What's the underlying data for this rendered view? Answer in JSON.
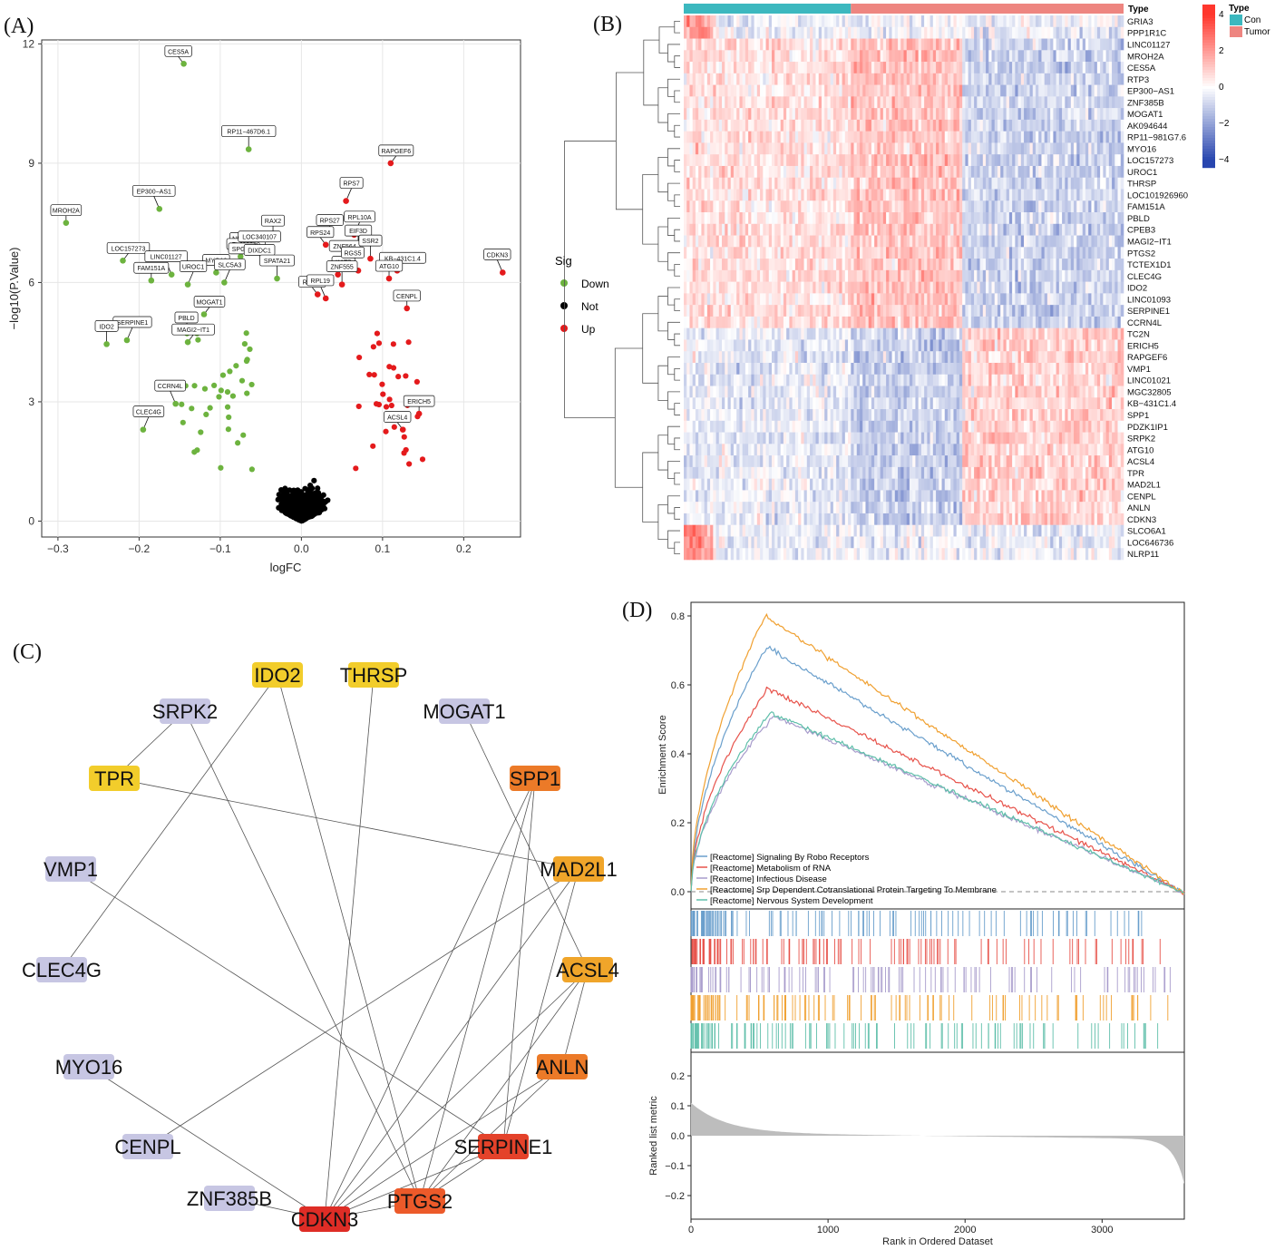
{
  "panels": {
    "a": "(A)",
    "b": "(B)",
    "c": "(C)",
    "d": "(D)"
  },
  "chart_data": [
    {
      "type": "scatter",
      "panel": "A",
      "xlabel": "logFC",
      "ylabel": "−log10(P.Value)",
      "xlim": [
        -0.32,
        0.27
      ],
      "ylim": [
        -0.4,
        12.1
      ],
      "xticks": [
        -0.3,
        -0.2,
        -0.1,
        0.0,
        0.1,
        0.2
      ],
      "xtick_labels": [
        "−0.3",
        "−0.2",
        "−0.1",
        "0.0",
        "0.1",
        "0.2"
      ],
      "yticks": [
        0,
        3,
        6,
        9,
        12
      ],
      "yticks_labels": [
        "0",
        "3",
        "6",
        "9",
        "12"
      ],
      "grid": true,
      "legend": {
        "title": "Sig",
        "position": "right",
        "entries": [
          {
            "name": "Down",
            "color": "#6db33f"
          },
          {
            "name": "Not",
            "color": "#000000"
          },
          {
            "name": "Up",
            "color": "#e41a1c"
          }
        ]
      },
      "labeled_points": [
        {
          "label": "CES5A",
          "x": -0.145,
          "y": 11.5,
          "sig": "Down"
        },
        {
          "label": "RP11−467D6.1",
          "x": -0.065,
          "y": 9.35,
          "sig": "Down"
        },
        {
          "label": "RAPGEF6",
          "x": 0.11,
          "y": 9.0,
          "sig": "Up"
        },
        {
          "label": "EP300−AS1",
          "x": -0.175,
          "y": 7.85,
          "sig": "Down"
        },
        {
          "label": "MROH2A",
          "x": -0.29,
          "y": 7.5,
          "sig": "Down"
        },
        {
          "label": "RPS7",
          "x": 0.055,
          "y": 8.05,
          "sig": "Up"
        },
        {
          "label": "NEGR1",
          "x": -0.065,
          "y": 6.8,
          "sig": "Down"
        },
        {
          "label": "RAX2",
          "x": -0.035,
          "y": 7.1,
          "sig": "Down"
        },
        {
          "label": "FLJ39080",
          "x": -0.075,
          "y": 6.65,
          "sig": "Down"
        },
        {
          "label": "LOC340107",
          "x": -0.045,
          "y": 6.7,
          "sig": "Down"
        },
        {
          "label": "RPS27",
          "x": 0.035,
          "y": 7.25,
          "sig": "Up"
        },
        {
          "label": "RPL10A",
          "x": 0.065,
          "y": 7.2,
          "sig": "Up"
        },
        {
          "label": "RPS24",
          "x": 0.03,
          "y": 6.95,
          "sig": "Up"
        },
        {
          "label": "EIF3D",
          "x": 0.07,
          "y": 6.85,
          "sig": "Up"
        },
        {
          "label": "LOC157273",
          "x": -0.22,
          "y": 6.55,
          "sig": "Down"
        },
        {
          "label": "LINC01127",
          "x": -0.16,
          "y": 6.2,
          "sig": "Down"
        },
        {
          "label": "MYO16",
          "x": -0.105,
          "y": 6.25,
          "sig": "Down"
        },
        {
          "label": "SPG11",
          "x": -0.08,
          "y": 6.4,
          "sig": "Down"
        },
        {
          "label": "ZNF564",
          "x": 0.06,
          "y": 6.6,
          "sig": "Up"
        },
        {
          "label": "SSR2",
          "x": 0.085,
          "y": 6.6,
          "sig": "Up"
        },
        {
          "label": "KB−431C1.4",
          "x": 0.118,
          "y": 6.3,
          "sig": "Up"
        },
        {
          "label": "CDKN3",
          "x": 0.248,
          "y": 6.25,
          "sig": "Up"
        },
        {
          "label": "FAM151A",
          "x": -0.185,
          "y": 6.05,
          "sig": "Down"
        },
        {
          "label": "SLC5A3",
          "x": -0.095,
          "y": 6.0,
          "sig": "Down"
        },
        {
          "label": "DIXDC1",
          "x": -0.045,
          "y": 6.5,
          "sig": "Down"
        },
        {
          "label": "SPATA21",
          "x": -0.03,
          "y": 6.1,
          "sig": "Down"
        },
        {
          "label": "KAT7",
          "x": 0.045,
          "y": 6.2,
          "sig": "Up"
        },
        {
          "label": "RGS5",
          "x": 0.07,
          "y": 6.3,
          "sig": "Up"
        },
        {
          "label": "ATG10",
          "x": 0.108,
          "y": 6.1,
          "sig": "Up"
        },
        {
          "label": "UROC1",
          "x": -0.14,
          "y": 5.95,
          "sig": "Down"
        },
        {
          "label": "RPL30",
          "x": 0.02,
          "y": 5.7,
          "sig": "Up"
        },
        {
          "label": "ZNF555",
          "x": 0.05,
          "y": 5.95,
          "sig": "Up"
        },
        {
          "label": "MOGAT1",
          "x": -0.12,
          "y": 5.2,
          "sig": "Down"
        },
        {
          "label": "RPL19",
          "x": 0.03,
          "y": 5.6,
          "sig": "Up"
        },
        {
          "label": "CENPL",
          "x": 0.13,
          "y": 5.35,
          "sig": "Up"
        },
        {
          "label": "SERPINE1",
          "x": -0.215,
          "y": 4.55,
          "sig": "Down"
        },
        {
          "label": "PBLD",
          "x": -0.135,
          "y": 4.8,
          "sig": "Down"
        },
        {
          "label": "IDO2",
          "x": -0.24,
          "y": 4.45,
          "sig": "Down"
        },
        {
          "label": "MAGI2−IT1",
          "x": -0.14,
          "y": 4.5,
          "sig": "Down"
        },
        {
          "label": "CCRN4L",
          "x": -0.155,
          "y": 2.95,
          "sig": "Down"
        },
        {
          "label": "ERICH5",
          "x": 0.145,
          "y": 2.7,
          "sig": "Up"
        },
        {
          "label": "CLEC4G",
          "x": -0.195,
          "y": 2.3,
          "sig": "Down"
        },
        {
          "label": "ACSL4",
          "x": 0.125,
          "y": 2.3,
          "sig": "Up"
        }
      ]
    },
    {
      "type": "heatmap",
      "panel": "B",
      "annotation_title": "Type",
      "groups": [
        {
          "name": "Con",
          "color": "#3cb8bf"
        },
        {
          "name": "Tumor",
          "color": "#ee8580"
        }
      ],
      "colorbar_ticks": [
        "4",
        "2",
        "0",
        "−2",
        "−4"
      ],
      "colorbar_range": [
        -4.5,
        4.5
      ],
      "rows": [
        "GRIA3",
        "PPP1R1C",
        "LINC01127",
        "MROH2A",
        "CES5A",
        "RTP3",
        "EP300−AS1",
        "ZNF385B",
        "MOGAT1",
        "AK094644",
        "RP11−981G7.6",
        "MYO16",
        "LOC157273",
        "UROC1",
        "THRSP",
        "LOC101926960",
        "FAM151A",
        "PBLD",
        "CPEB3",
        "MAGI2−IT1",
        "PTGS2",
        "TCTEX1D1",
        "CLEC4G",
        "IDO2",
        "LINC01093",
        "SERPINE1",
        "CCRN4L",
        "TC2N",
        "ERICH5",
        "RAPGEF6",
        "VMP1",
        "LINC01021",
        "MGC32805",
        "KB−431C1.4",
        "SPP1",
        "PDZK1IP1",
        "SRPK2",
        "ATG10",
        "ACSL4",
        "TPR",
        "MAD2L1",
        "CENPL",
        "ANLN",
        "CDKN3",
        "SLCO6A1",
        "LOC646736",
        "NLRP11"
      ]
    },
    {
      "type": "network",
      "panel": "C",
      "nodes": [
        {
          "label": "IDO2",
          "color": "#f2cd2b"
        },
        {
          "label": "THRSP",
          "color": "#f2cd2b"
        },
        {
          "label": "SRPK2",
          "color": "#c7c6e3"
        },
        {
          "label": "MOGAT1",
          "color": "#c7c6e3"
        },
        {
          "label": "TPR",
          "color": "#f2cd2b"
        },
        {
          "label": "SPP1",
          "color": "#ec7a28"
        },
        {
          "label": "VMP1",
          "color": "#c7c6e3"
        },
        {
          "label": "MAD2L1",
          "color": "#f0a52a"
        },
        {
          "label": "CLEC4G",
          "color": "#c7c6e3"
        },
        {
          "label": "ACSL4",
          "color": "#f0a52a"
        },
        {
          "label": "MYO16",
          "color": "#c7c6e3"
        },
        {
          "label": "ANLN",
          "color": "#ec7a28"
        },
        {
          "label": "CENPL",
          "color": "#c7c6e3"
        },
        {
          "label": "SERPINE1",
          "color": "#e4422a"
        },
        {
          "label": "ZNF385B",
          "color": "#c7c6e3"
        },
        {
          "label": "PTGS2",
          "color": "#ec5a2a"
        },
        {
          "label": "CDKN3",
          "color": "#de2d26"
        }
      ],
      "edges": [
        [
          "SRPK2",
          "TPR"
        ],
        [
          "SRPK2",
          "PTGS2"
        ],
        [
          "IDO2",
          "CLEC4G"
        ],
        [
          "IDO2",
          "PTGS2"
        ],
        [
          "THRSP",
          "CDKN3"
        ],
        [
          "MOGAT1",
          "ACSL4"
        ],
        [
          "TPR",
          "MAD2L1"
        ],
        [
          "SPP1",
          "CDKN3"
        ],
        [
          "SPP1",
          "PTGS2"
        ],
        [
          "SPP1",
          "SERPINE1"
        ],
        [
          "VMP1",
          "SERPINE1"
        ],
        [
          "MAD2L1",
          "CENPL"
        ],
        [
          "MAD2L1",
          "CDKN3"
        ],
        [
          "MAD2L1",
          "SERPINE1"
        ],
        [
          "ACSL4",
          "CDKN3"
        ],
        [
          "ACSL4",
          "PTGS2"
        ],
        [
          "ACSL4",
          "ANLN"
        ],
        [
          "ANLN",
          "CDKN3"
        ],
        [
          "ANLN",
          "PTGS2"
        ],
        [
          "MYO16",
          "CDKN3"
        ],
        [
          "SERPINE1",
          "CDKN3"
        ],
        [
          "SERPINE1",
          "PTGS2"
        ],
        [
          "PTGS2",
          "CDKN3"
        ],
        [
          "ZNF385B",
          "CDKN3"
        ]
      ]
    },
    {
      "type": "line",
      "panel": "D",
      "ylabel": "Enrichment Score",
      "yticks": [
        "0.0",
        "0.2",
        "0.4",
        "0.6",
        "0.8"
      ],
      "ylim": [
        -0.05,
        0.85
      ],
      "series": [
        {
          "name": "[Reactome] Signaling By Robo Receptors",
          "color": "#6a9fcc",
          "peak_rank": 550,
          "peak": 0.71
        },
        {
          "name": "[Reactome] Metabolism of RNA",
          "color": "#e7524a",
          "peak_rank": 560,
          "peak": 0.59
        },
        {
          "name": "[Reactome] Infectious Disease",
          "color": "#a89ccc",
          "peak_rank": 600,
          "peak": 0.51
        },
        {
          "name": "[Reactome] Srp Dependent Cotranslational Protein Targeting To Membrane",
          "color": "#f0a030",
          "peak_rank": 540,
          "peak": 0.8
        },
        {
          "name": "[Reactome] Nervous System Development",
          "color": "#5fbfaa",
          "peak_rank": 580,
          "peak": 0.52
        }
      ],
      "rank_ylabel": "Ranked list metric",
      "rank_yticks": [
        "0.2",
        "0.1",
        "0.0",
        "−0.1",
        "−0.2"
      ],
      "xlabel": "Rank in Ordered Dataset",
      "xticks": [
        "0",
        "1000",
        "2000",
        "3000"
      ],
      "xlim": [
        0,
        3600
      ]
    }
  ]
}
